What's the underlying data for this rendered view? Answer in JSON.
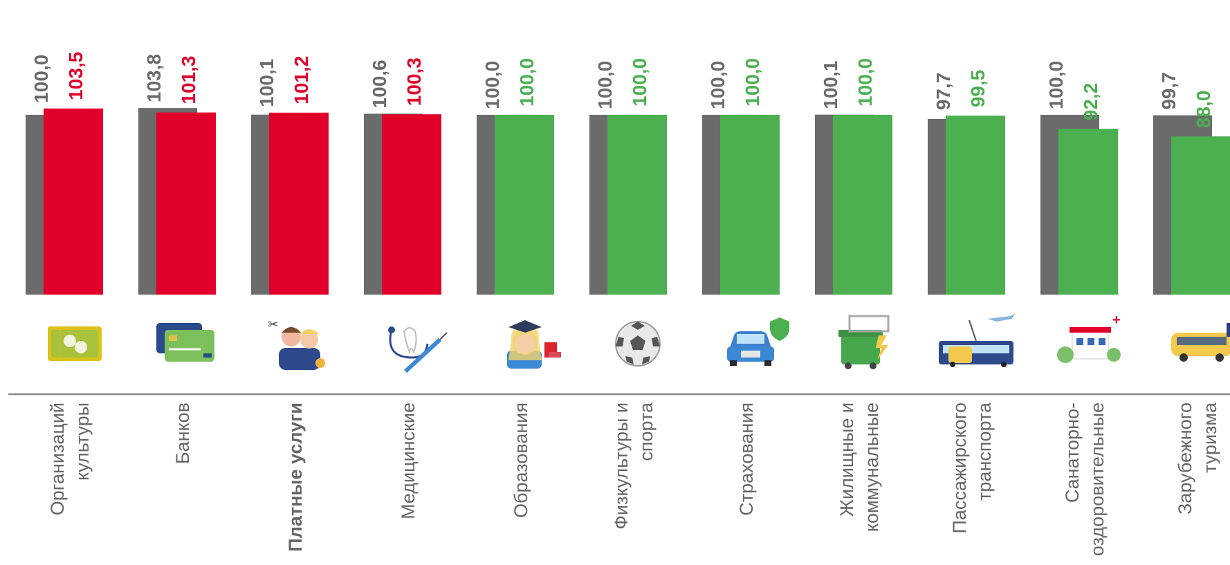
{
  "chart_data": {
    "type": "bar",
    "ylim": [
      0,
      110
    ],
    "grid": false,
    "legend": "none",
    "colors": {
      "previous": "#6b6b6b",
      "up": "#e0002a",
      "down": "#4caf50",
      "axis": "#888888",
      "label_text": "#666666"
    },
    "categories": [
      {
        "label_lines": [
          "Организаций",
          "культуры"
        ],
        "bold": false,
        "icon": "theater-tickets-icon"
      },
      {
        "label_lines": [
          "Банков"
        ],
        "bold": false,
        "icon": "bank-cards-icon"
      },
      {
        "label_lines": [
          "Платные услуги"
        ],
        "bold": true,
        "icon": "people-services-icon"
      },
      {
        "label_lines": [
          "Медицинские"
        ],
        "bold": false,
        "icon": "medical-stethoscope-icon"
      },
      {
        "label_lines": [
          "Образования"
        ],
        "bold": false,
        "icon": "graduate-student-icon"
      },
      {
        "label_lines": [
          "Физкультуры и",
          "спорта"
        ],
        "bold": false,
        "icon": "soccer-ball-icon"
      },
      {
        "label_lines": [
          "Страхования"
        ],
        "bold": false,
        "icon": "insured-car-icon"
      },
      {
        "label_lines": [
          "Жилищные и",
          "коммунальные"
        ],
        "bold": false,
        "icon": "utilities-container-icon"
      },
      {
        "label_lines": [
          "Пассажирского",
          "транспорта"
        ],
        "bold": false,
        "icon": "public-transport-icon"
      },
      {
        "label_lines": [
          "Санаторно-",
          "оздоровительные"
        ],
        "bold": false,
        "icon": "sanatorium-icon"
      },
      {
        "label_lines": [
          "Зарубежного",
          "туризма"
        ],
        "bold": false,
        "icon": "tour-bus-icon"
      }
    ],
    "series": [
      {
        "values": [
          100.0,
          103.8,
          100.1,
          100.6,
          100.0,
          100.0,
          100.0,
          100.1,
          97.7,
          100.0,
          99.7
        ],
        "labels": [
          "100,0",
          "103,8",
          "100,1",
          "100,6",
          "100,0",
          "100,0",
          "100,0",
          "100,1",
          "97,7",
          "100,0",
          "99,7"
        ]
      },
      {
        "values": [
          103.5,
          101.3,
          101.2,
          100.3,
          100.0,
          100.0,
          100.0,
          100.0,
          99.5,
          92.2,
          88.0
        ],
        "labels": [
          "103,5",
          "101,3",
          "101,2",
          "100,3",
          "100,0",
          "100,0",
          "100,0",
          "100,0",
          "99,5",
          "92,2",
          "88,0"
        ],
        "colors": [
          "up",
          "up",
          "up",
          "up",
          "down",
          "down",
          "down",
          "down",
          "down",
          "down",
          "down"
        ]
      }
    ]
  }
}
